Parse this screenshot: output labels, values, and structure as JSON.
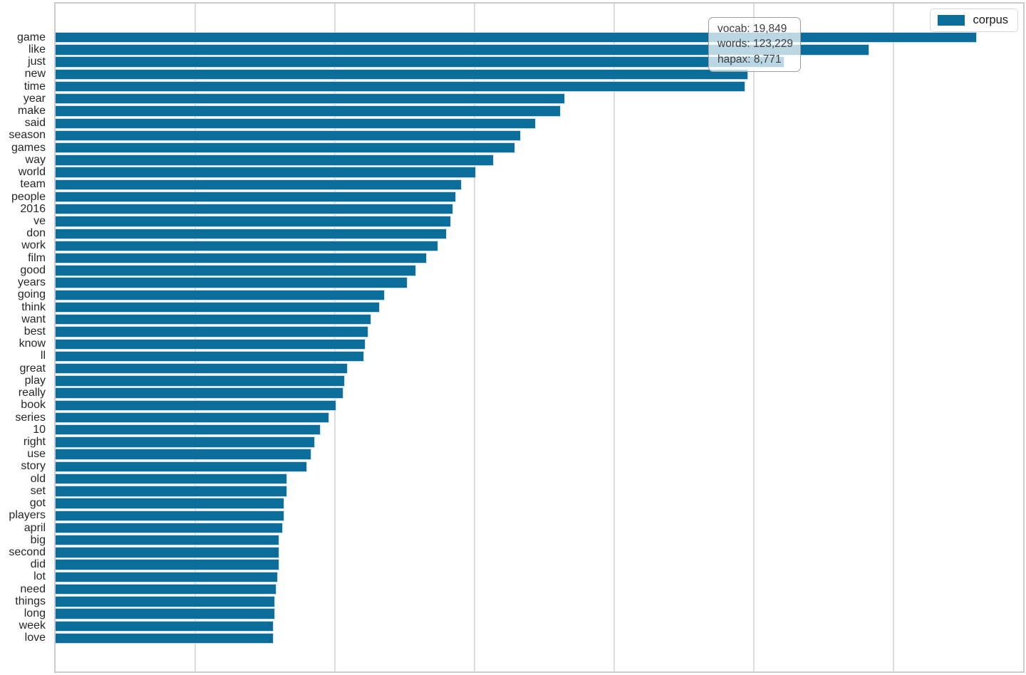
{
  "chart_data": {
    "type": "bar",
    "orientation": "horizontal",
    "title": "",
    "xlabel": "",
    "ylabel": "",
    "legend_label": "corpus",
    "legend_position": "upper right",
    "grid": "vertical",
    "bar_color": "#0b6e9a",
    "gridline_color": "#dcdcdc",
    "xlim": [
      0,
      693
    ],
    "x_gridlines": [
      100,
      200,
      300,
      400,
      500,
      600
    ],
    "categories": [
      "game",
      "like",
      "just",
      "new",
      "time",
      "year",
      "make",
      "said",
      "season",
      "games",
      "way",
      "world",
      "team",
      "people",
      "2016",
      "ve",
      "don",
      "work",
      "film",
      "good",
      "years",
      "going",
      "think",
      "want",
      "best",
      "know",
      "ll",
      "great",
      "play",
      "really",
      "book",
      "series",
      "10",
      "right",
      "use",
      "story",
      "old",
      "set",
      "got",
      "players",
      "april",
      "big",
      "second",
      "did",
      "lot",
      "need",
      "things",
      "long",
      "week",
      "love"
    ],
    "values": [
      660,
      583,
      522,
      496,
      494,
      365,
      362,
      344,
      333,
      329,
      314,
      301,
      291,
      287,
      285,
      283,
      280,
      274,
      266,
      258,
      252,
      236,
      232,
      226,
      224,
      222,
      221,
      209,
      207,
      206,
      201,
      196,
      190,
      186,
      183,
      180,
      166,
      166,
      164,
      164,
      163,
      160,
      160,
      160,
      159,
      158,
      157,
      157,
      156,
      156
    ],
    "series": [
      {
        "name": "corpus",
        "values": [
          660,
          583,
          522,
          496,
          494,
          365,
          362,
          344,
          333,
          329,
          314,
          301,
          291,
          287,
          285,
          283,
          280,
          274,
          266,
          258,
          252,
          236,
          232,
          226,
          224,
          222,
          221,
          209,
          207,
          206,
          201,
          196,
          190,
          186,
          183,
          180,
          166,
          166,
          164,
          164,
          163,
          160,
          160,
          160,
          159,
          158,
          157,
          157,
          156,
          156
        ]
      }
    ],
    "annotation": {
      "lines": [
        "vocab: 19,849",
        "words: 123,229",
        "hapax: 8,771"
      ]
    }
  }
}
